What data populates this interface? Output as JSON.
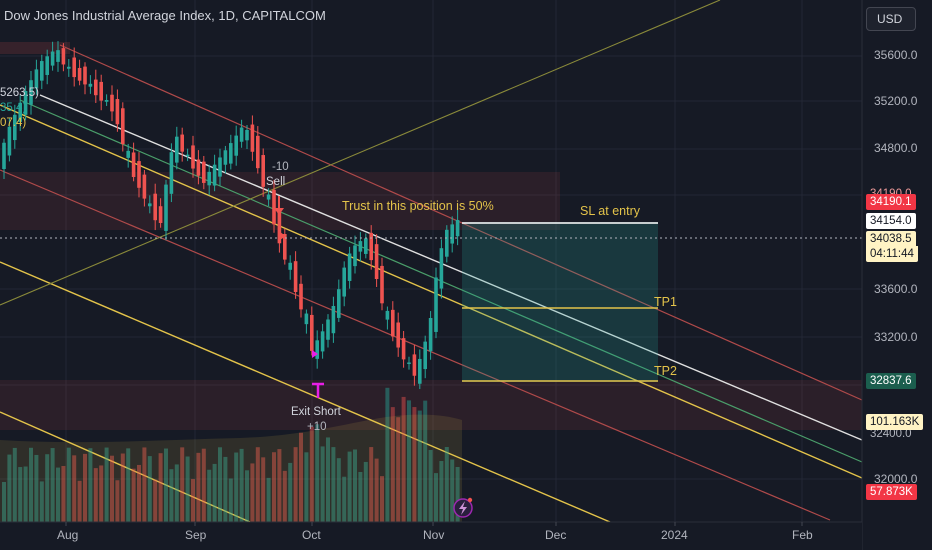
{
  "title": "Dow Jones Industrial Average Index, 1D, CAPITALCOM",
  "currency_button": "USD",
  "price_axis": [
    "35600.0",
    "35200.0",
    "34800.0",
    "33600.0",
    "33200.0",
    "32000.0"
  ],
  "date_axis": [
    "Aug",
    "Sep",
    "Oct",
    "Nov",
    "Dec",
    "2024",
    "Feb"
  ],
  "price_tags": {
    "red_top": "34190.1",
    "white": "34154.0",
    "current": "34038.5",
    "countdown": "04:11:44",
    "green": "32837.6",
    "volume_yellow": "101.163K",
    "volume_red": "57.873K",
    "partial_label": "32400.0",
    "partial_red": "34190.0"
  },
  "left_edge_labels": [
    "5263.5)",
    "35.4)",
    "07.4)"
  ],
  "annotations": {
    "trust": "Trust in this position is 50%",
    "sl": "SL at entry",
    "tp1": "TP1",
    "tp2": "TP2",
    "sell_qty": "-10",
    "sell": "Sell",
    "exit_short": "Exit Short",
    "exit_qty": "+10"
  },
  "colors": {
    "background": "#161a25",
    "up": "#26a69a",
    "down": "#ef5350",
    "yellow": "#e3c34a",
    "white_line": "#e0e0e0",
    "magenta": "#e91ee6"
  }
}
